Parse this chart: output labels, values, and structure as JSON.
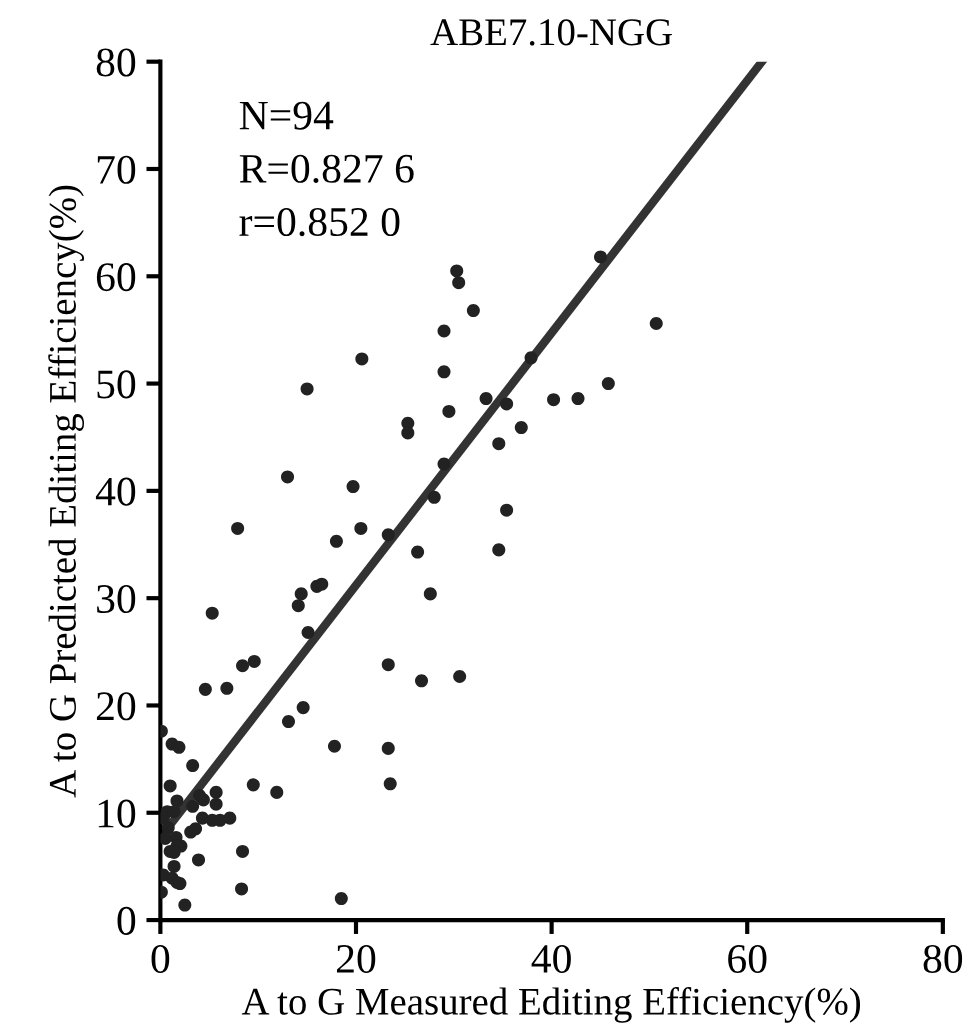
{
  "chart_data": {
    "type": "scatter",
    "title": "ABE7.10-NGG",
    "xlabel": "A to G Measured Editing Efficiency(%)",
    "ylabel": "A to G Predicted Editing Efficiency(%)",
    "annotations": [
      "N=94",
      "R=0.827 6",
      "r=0.852 0"
    ],
    "xlim": [
      0,
      80
    ],
    "ylim": [
      0,
      80
    ],
    "xticks": [
      0,
      20,
      40,
      60,
      80
    ],
    "yticks": [
      0,
      10,
      20,
      30,
      40,
      50,
      60,
      70,
      80
    ],
    "grid": false,
    "marker": "circle",
    "series": [
      {
        "color": "#222222",
        "x": [
          30.3,
          30.5,
          32.0,
          29.0,
          20.6,
          37.9,
          29.0,
          15.0,
          33.3,
          35.4,
          40.2,
          29.5,
          25.3,
          25.3,
          36.9,
          34.6,
          29.0,
          13.0,
          19.7,
          28.0,
          35.4,
          7.9,
          20.5,
          23.3,
          18.0,
          26.3,
          34.6,
          27.6,
          14.4,
          14.1,
          16.0,
          16.5,
          5.3,
          15.1,
          8.4,
          9.6,
          23.3,
          26.7,
          30.6,
          45.0,
          50.7,
          45.8,
          42.7,
          4.6,
          6.8,
          14.6,
          13.1,
          17.8,
          0.1,
          1.2,
          1.9,
          3.3,
          9.5,
          11.9,
          1.0,
          1.7,
          4.0,
          4.4,
          5.7,
          5.7,
          3.3,
          4.3,
          5.3,
          6.1,
          7.1,
          0.7,
          1.4,
          0.3,
          0.8,
          3.6,
          3.1,
          1.6,
          0.5,
          1.7,
          2.1,
          1.0,
          1.4,
          8.4,
          3.9,
          1.4,
          0.3,
          1.2,
          1.7,
          2.0,
          0.1,
          8.3,
          2.5,
          18.5,
          23.3,
          23.5
        ],
        "values": [
          60.5,
          59.4,
          56.8,
          54.9,
          52.3,
          52.4,
          51.1,
          49.5,
          48.6,
          48.1,
          48.5,
          47.4,
          46.3,
          45.4,
          45.9,
          44.4,
          42.5,
          41.3,
          40.4,
          39.4,
          38.2,
          36.5,
          36.5,
          35.9,
          35.3,
          34.3,
          34.5,
          30.4,
          30.4,
          29.3,
          31.1,
          31.3,
          28.6,
          26.8,
          23.7,
          24.1,
          23.8,
          22.3,
          22.7,
          61.8,
          55.6,
          50.0,
          48.6,
          21.5,
          21.6,
          19.8,
          18.5,
          16.2,
          17.6,
          16.4,
          16.1,
          14.4,
          12.6,
          11.9,
          12.5,
          11.1,
          11.6,
          11.2,
          11.9,
          10.8,
          10.6,
          9.5,
          9.3,
          9.3,
          9.5,
          10.1,
          10.1,
          9.5,
          8.6,
          8.5,
          8.2,
          7.7,
          7.6,
          6.9,
          6.9,
          6.4,
          6.3,
          6.4,
          5.6,
          5.0,
          4.2,
          3.9,
          3.5,
          3.4,
          2.6,
          2.9,
          1.4,
          2.0,
          16.0,
          12.7
        ]
      },
      {
        "type": "line",
        "color": "#333333",
        "marker": "none",
        "x": [
          0,
          61.5
        ],
        "values": [
          7.7,
          80
        ]
      }
    ]
  }
}
